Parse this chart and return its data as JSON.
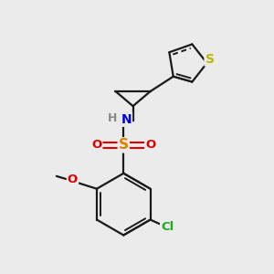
{
  "background_color": "#ebebeb",
  "bond_color": "#1a1a1a",
  "atom_colors": {
    "S_thiophene": "#b8b800",
    "S_sulfonyl": "#e08000",
    "N": "#0000dd",
    "O": "#dd0000",
    "Cl": "#22aa22",
    "H": "#888888",
    "C": "#1a1a1a"
  },
  "figsize": [
    3.0,
    3.0
  ],
  "dpi": 100
}
